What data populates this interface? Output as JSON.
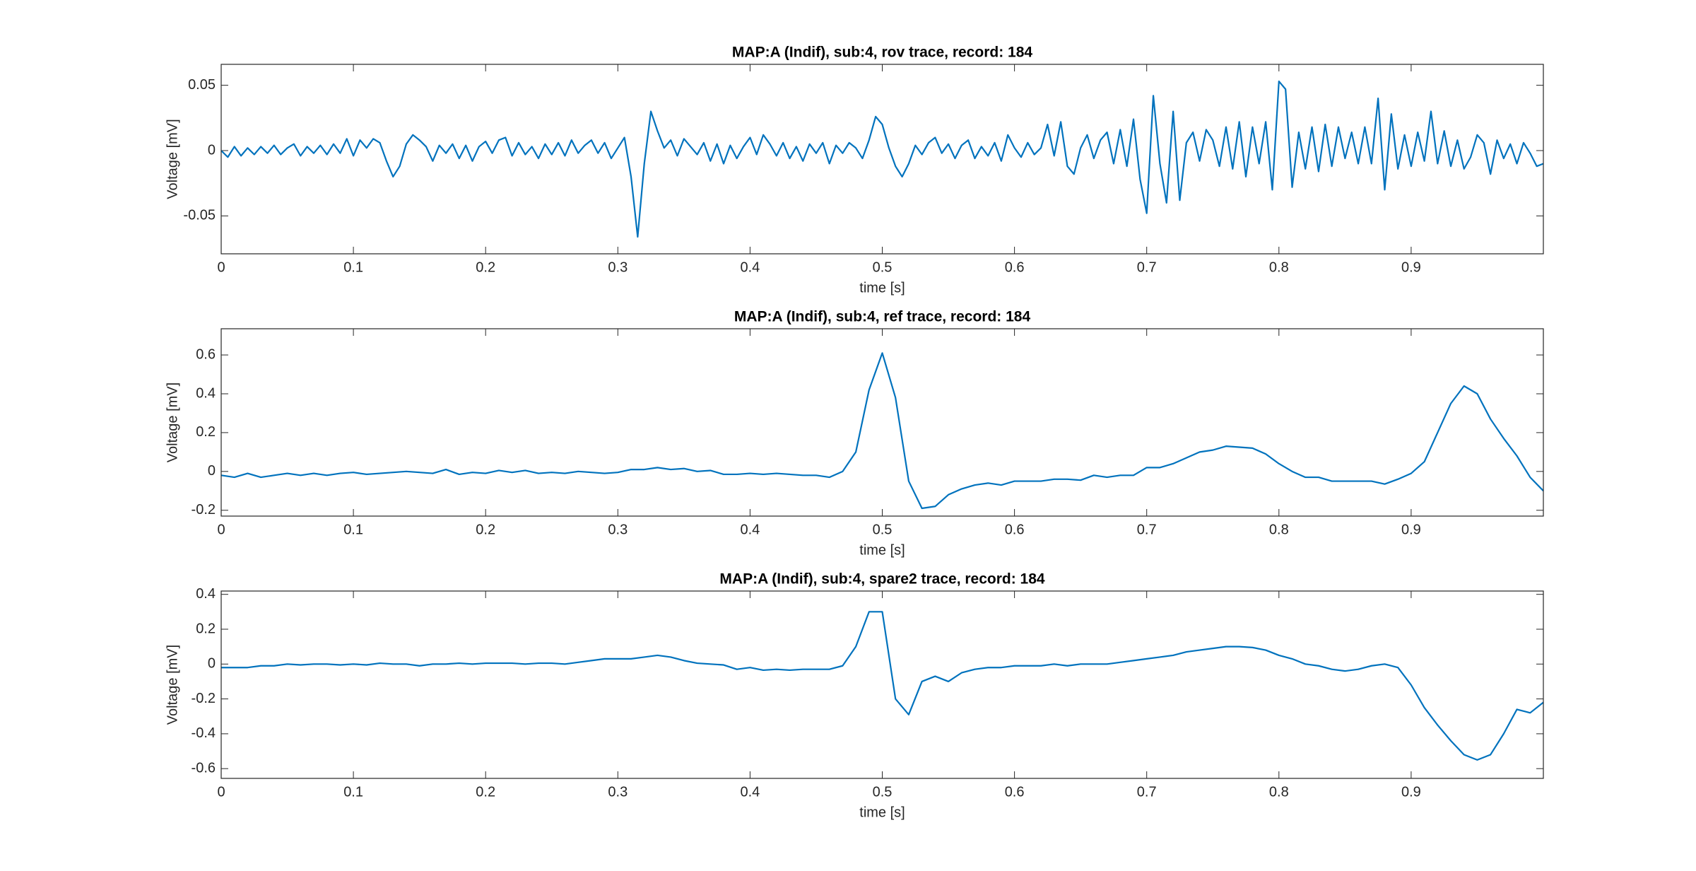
{
  "chart_data": [
    {
      "type": "line",
      "title": "MAP:A (Indif), sub:4, rov trace, record: 184",
      "xlabel": "time [s]",
      "ylabel": "Voltage [mV]",
      "color": "#0072bd",
      "xlim": [
        0,
        1
      ],
      "xticks": [
        0,
        0.1,
        0.2,
        0.3,
        0.4,
        0.5,
        0.6,
        0.7,
        0.8,
        0.9
      ],
      "ylim": [
        -0.079,
        0.066
      ],
      "yticks": [
        -0.05,
        0,
        0.05
      ],
      "x": [
        0,
        0.005,
        0.01,
        0.015,
        0.02,
        0.025,
        0.03,
        0.035,
        0.04,
        0.045,
        0.05,
        0.055,
        0.06,
        0.065,
        0.07,
        0.075,
        0.08,
        0.085,
        0.09,
        0.095,
        0.1,
        0.105,
        0.11,
        0.115,
        0.12,
        0.125,
        0.13,
        0.135,
        0.14,
        0.145,
        0.15,
        0.155,
        0.16,
        0.165,
        0.17,
        0.175,
        0.18,
        0.185,
        0.19,
        0.195,
        0.2,
        0.205,
        0.21,
        0.215,
        0.22,
        0.225,
        0.23,
        0.235,
        0.24,
        0.245,
        0.25,
        0.255,
        0.26,
        0.265,
        0.27,
        0.275,
        0.28,
        0.285,
        0.29,
        0.295,
        0.3,
        0.305,
        0.31,
        0.315,
        0.32,
        0.325,
        0.33,
        0.335,
        0.34,
        0.345,
        0.35,
        0.355,
        0.36,
        0.365,
        0.37,
        0.375,
        0.38,
        0.385,
        0.39,
        0.395,
        0.4,
        0.405,
        0.41,
        0.415,
        0.42,
        0.425,
        0.43,
        0.435,
        0.44,
        0.445,
        0.45,
        0.455,
        0.46,
        0.465,
        0.47,
        0.475,
        0.48,
        0.485,
        0.49,
        0.495,
        0.5,
        0.505,
        0.51,
        0.515,
        0.52,
        0.525,
        0.53,
        0.535,
        0.54,
        0.545,
        0.55,
        0.555,
        0.56,
        0.565,
        0.57,
        0.575,
        0.58,
        0.585,
        0.59,
        0.595,
        0.6,
        0.605,
        0.61,
        0.615,
        0.62,
        0.625,
        0.63,
        0.635,
        0.64,
        0.645,
        0.65,
        0.655,
        0.66,
        0.665,
        0.67,
        0.675,
        0.68,
        0.685,
        0.69,
        0.695,
        0.7,
        0.705,
        0.71,
        0.715,
        0.72,
        0.725,
        0.73,
        0.735,
        0.74,
        0.745,
        0.75,
        0.755,
        0.76,
        0.765,
        0.77,
        0.775,
        0.78,
        0.785,
        0.79,
        0.795,
        0.8,
        0.805,
        0.81,
        0.815,
        0.82,
        0.825,
        0.83,
        0.835,
        0.84,
        0.845,
        0.85,
        0.855,
        0.86,
        0.865,
        0.87,
        0.875,
        0.88,
        0.885,
        0.89,
        0.895,
        0.9,
        0.905,
        0.91,
        0.915,
        0.92,
        0.925,
        0.93,
        0.935,
        0.94,
        0.945,
        0.95,
        0.955,
        0.96,
        0.965,
        0.97,
        0.975,
        0.98,
        0.985,
        0.99,
        0.995,
        1
      ],
      "values": [
        0,
        -0.005,
        0.003,
        -0.004,
        0.002,
        -0.003,
        0.003,
        -0.002,
        0.004,
        -0.003,
        0.002,
        0.005,
        -0.004,
        0.003,
        -0.002,
        0.004,
        -0.003,
        0.005,
        -0.002,
        0.009,
        -0.004,
        0.008,
        0.002,
        0.009,
        0.006,
        -0.008,
        -0.02,
        -0.012,
        0.005,
        0.012,
        0.008,
        0.003,
        -0.008,
        0.004,
        -0.002,
        0.005,
        -0.006,
        0.004,
        -0.008,
        0.003,
        0.007,
        -0.002,
        0.008,
        0.01,
        -0.004,
        0.006,
        -0.003,
        0.003,
        -0.006,
        0.005,
        -0.003,
        0.006,
        -0.004,
        0.008,
        -0.002,
        0.004,
        0.008,
        -0.002,
        0.006,
        -0.006,
        0.002,
        0.01,
        -0.02,
        -0.066,
        -0.01,
        0.03,
        0.015,
        0.002,
        0.008,
        -0.004,
        0.009,
        0.003,
        -0.003,
        0.006,
        -0.008,
        0.005,
        -0.01,
        0.004,
        -0.006,
        0.003,
        0.01,
        -0.003,
        0.012,
        0.005,
        -0.004,
        0.006,
        -0.006,
        0.003,
        -0.008,
        0.005,
        -0.002,
        0.006,
        -0.01,
        0.004,
        -0.002,
        0.006,
        0.002,
        -0.006,
        0.008,
        0.026,
        0.02,
        0.002,
        -0.012,
        -0.02,
        -0.01,
        0.004,
        -0.003,
        0.006,
        0.01,
        -0.002,
        0.005,
        -0.006,
        0.004,
        0.008,
        -0.006,
        0.003,
        -0.004,
        0.006,
        -0.008,
        0.012,
        0.002,
        -0.005,
        0.006,
        -0.003,
        0.002,
        0.02,
        -0.004,
        0.022,
        -0.012,
        -0.018,
        0.002,
        0.012,
        -0.006,
        0.008,
        0.014,
        -0.01,
        0.016,
        -0.012,
        0.024,
        -0.022,
        -0.048,
        0.042,
        -0.01,
        -0.04,
        0.03,
        -0.038,
        0.006,
        0.014,
        -0.008,
        0.016,
        0.008,
        -0.012,
        0.018,
        -0.014,
        0.022,
        -0.02,
        0.018,
        -0.01,
        0.022,
        -0.03,
        0.053,
        0.047,
        -0.028,
        0.014,
        -0.014,
        0.018,
        -0.016,
        0.02,
        -0.012,
        0.018,
        -0.006,
        0.014,
        -0.01,
        0.018,
        -0.01,
        0.04,
        -0.03,
        0.028,
        -0.014,
        0.012,
        -0.012,
        0.014,
        -0.008,
        0.03,
        -0.01,
        0.015,
        -0.012,
        0.008,
        -0.014,
        -0.005,
        0.012,
        0.006,
        -0.018,
        0.008,
        -0.006,
        0.005,
        -0.01,
        0.006,
        -0.002,
        -0.012,
        -0.01
      ]
    },
    {
      "type": "line",
      "title": "MAP:A (Indif), sub:4, ref trace, record: 184",
      "xlabel": "time [s]",
      "ylabel": "Voltage [mV]",
      "color": "#0072bd",
      "xlim": [
        0,
        1
      ],
      "xticks": [
        0,
        0.1,
        0.2,
        0.3,
        0.4,
        0.5,
        0.6,
        0.7,
        0.8,
        0.9
      ],
      "ylim": [
        -0.23,
        0.735
      ],
      "yticks": [
        -0.2,
        0,
        0.2,
        0.4,
        0.6
      ],
      "x": [
        0,
        0.01,
        0.02,
        0.03,
        0.04,
        0.05,
        0.06,
        0.07,
        0.08,
        0.09,
        0.1,
        0.11,
        0.12,
        0.13,
        0.14,
        0.15,
        0.16,
        0.17,
        0.18,
        0.19,
        0.2,
        0.21,
        0.22,
        0.23,
        0.24,
        0.25,
        0.26,
        0.27,
        0.28,
        0.29,
        0.3,
        0.31,
        0.32,
        0.33,
        0.34,
        0.35,
        0.36,
        0.37,
        0.38,
        0.39,
        0.4,
        0.41,
        0.42,
        0.43,
        0.44,
        0.45,
        0.46,
        0.47,
        0.48,
        0.49,
        0.5,
        0.51,
        0.52,
        0.53,
        0.54,
        0.55,
        0.56,
        0.57,
        0.58,
        0.59,
        0.6,
        0.61,
        0.62,
        0.63,
        0.64,
        0.65,
        0.66,
        0.67,
        0.68,
        0.69,
        0.7,
        0.71,
        0.72,
        0.73,
        0.74,
        0.75,
        0.76,
        0.77,
        0.78,
        0.79,
        0.8,
        0.81,
        0.82,
        0.83,
        0.84,
        0.85,
        0.86,
        0.87,
        0.88,
        0.89,
        0.9,
        0.91,
        0.92,
        0.93,
        0.94,
        0.95,
        0.96,
        0.97,
        0.98,
        0.99,
        1
      ],
      "values": [
        -0.02,
        -0.03,
        -0.01,
        -0.03,
        -0.02,
        -0.01,
        -0.02,
        -0.01,
        -0.02,
        -0.01,
        -0.005,
        -0.015,
        -0.01,
        -0.005,
        0,
        -0.005,
        -0.01,
        0.01,
        -0.015,
        -0.005,
        -0.01,
        0.005,
        -0.005,
        0.005,
        -0.01,
        -0.005,
        -0.01,
        0,
        -0.005,
        -0.01,
        -0.005,
        0.01,
        0.01,
        0.02,
        0.01,
        0.015,
        0,
        0.005,
        -0.015,
        -0.015,
        -0.01,
        -0.015,
        -0.01,
        -0.015,
        -0.02,
        -0.02,
        -0.03,
        0,
        0.1,
        0.42,
        0.61,
        0.38,
        -0.05,
        -0.19,
        -0.18,
        -0.12,
        -0.09,
        -0.07,
        -0.06,
        -0.07,
        -0.05,
        -0.05,
        -0.05,
        -0.04,
        -0.04,
        -0.045,
        -0.02,
        -0.03,
        -0.02,
        -0.02,
        0.02,
        0.02,
        0.04,
        0.07,
        0.1,
        0.11,
        0.13,
        0.125,
        0.12,
        0.09,
        0.04,
        0,
        -0.03,
        -0.03,
        -0.05,
        -0.05,
        -0.05,
        -0.05,
        -0.065,
        -0.04,
        -0.01,
        0.05,
        0.2,
        0.35,
        0.44,
        0.4,
        0.27,
        0.17,
        0.08,
        -0.03,
        -0.1
      ]
    },
    {
      "type": "line",
      "title": "MAP:A (Indif), sub:4, spare2 trace, record: 184",
      "xlabel": "time [s]",
      "ylabel": "Voltage [mV]",
      "color": "#0072bd",
      "xlim": [
        0,
        1
      ],
      "xticks": [
        0,
        0.1,
        0.2,
        0.3,
        0.4,
        0.5,
        0.6,
        0.7,
        0.8,
        0.9
      ],
      "ylim": [
        -0.656,
        0.419
      ],
      "yticks": [
        -0.6,
        -0.4,
        -0.2,
        0,
        0.2,
        0.4
      ],
      "x": [
        0,
        0.01,
        0.02,
        0.03,
        0.04,
        0.05,
        0.06,
        0.07,
        0.08,
        0.09,
        0.1,
        0.11,
        0.12,
        0.13,
        0.14,
        0.15,
        0.16,
        0.17,
        0.18,
        0.19,
        0.2,
        0.21,
        0.22,
        0.23,
        0.24,
        0.25,
        0.26,
        0.27,
        0.28,
        0.29,
        0.3,
        0.31,
        0.32,
        0.33,
        0.34,
        0.35,
        0.36,
        0.37,
        0.38,
        0.39,
        0.4,
        0.41,
        0.42,
        0.43,
        0.44,
        0.45,
        0.46,
        0.47,
        0.48,
        0.49,
        0.5,
        0.51,
        0.52,
        0.53,
        0.54,
        0.55,
        0.56,
        0.57,
        0.58,
        0.59,
        0.6,
        0.61,
        0.62,
        0.63,
        0.64,
        0.65,
        0.66,
        0.67,
        0.68,
        0.69,
        0.7,
        0.71,
        0.72,
        0.73,
        0.74,
        0.75,
        0.76,
        0.77,
        0.78,
        0.79,
        0.8,
        0.81,
        0.82,
        0.83,
        0.84,
        0.85,
        0.86,
        0.87,
        0.88,
        0.89,
        0.9,
        0.91,
        0.92,
        0.93,
        0.94,
        0.95,
        0.96,
        0.97,
        0.98,
        0.99,
        1
      ],
      "values": [
        -0.02,
        -0.02,
        -0.02,
        -0.01,
        -0.01,
        0,
        -0.005,
        0,
        0,
        -0.005,
        0,
        -0.005,
        0.005,
        0,
        0,
        -0.01,
        0,
        0,
        0.005,
        0,
        0.005,
        0.005,
        0.005,
        0,
        0.005,
        0.005,
        0,
        0.01,
        0.02,
        0.03,
        0.03,
        0.03,
        0.04,
        0.05,
        0.04,
        0.02,
        0.005,
        0,
        -0.005,
        -0.03,
        -0.02,
        -0.035,
        -0.03,
        -0.035,
        -0.03,
        -0.03,
        -0.03,
        -0.01,
        0.1,
        0.3,
        0.3,
        -0.2,
        -0.29,
        -0.1,
        -0.07,
        -0.1,
        -0.05,
        -0.03,
        -0.02,
        -0.02,
        -0.01,
        -0.01,
        -0.01,
        0,
        -0.01,
        0,
        0,
        0,
        0.01,
        0.02,
        0.03,
        0.04,
        0.05,
        0.07,
        0.08,
        0.09,
        0.1,
        0.1,
        0.095,
        0.08,
        0.05,
        0.03,
        0,
        -0.01,
        -0.03,
        -0.04,
        -0.03,
        -0.01,
        0,
        -0.02,
        -0.12,
        -0.25,
        -0.35,
        -0.44,
        -0.52,
        -0.55,
        -0.52,
        -0.4,
        -0.26,
        -0.28,
        -0.22
      ]
    }
  ]
}
